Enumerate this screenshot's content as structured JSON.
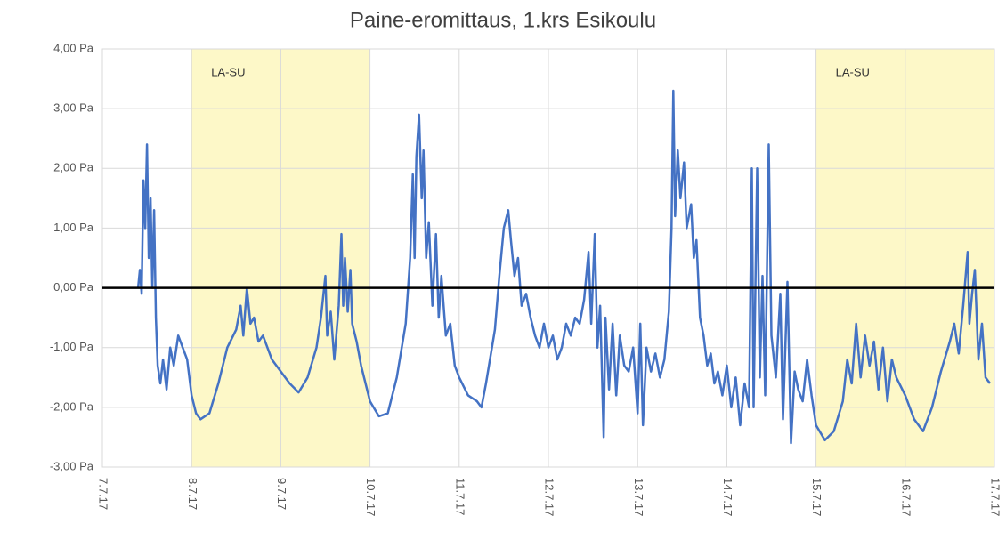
{
  "chart_data": {
    "type": "line",
    "title": "Paine-eromittaus, 1.krs Esikoulu",
    "color": "#4472c4",
    "grid": true,
    "hline": 0,
    "shaded_regions": [
      {
        "start": 1,
        "end": 3,
        "label": "LA-SU"
      },
      {
        "start": 8,
        "end": 10,
        "label": "LA-SU"
      }
    ],
    "xlim": [
      0,
      10
    ],
    "xticks": [
      {
        "value": 0,
        "label": "7.7.17"
      },
      {
        "value": 1,
        "label": "8.7.17"
      },
      {
        "value": 2,
        "label": "9.7.17"
      },
      {
        "value": 3,
        "label": "10.7.17"
      },
      {
        "value": 4,
        "label": "11.7.17"
      },
      {
        "value": 5,
        "label": "12.7.17"
      },
      {
        "value": 6,
        "label": "13.7.17"
      },
      {
        "value": 7,
        "label": "14.7.17"
      },
      {
        "value": 8,
        "label": "15.7.17"
      },
      {
        "value": 9,
        "label": "16.7.17"
      },
      {
        "value": 10,
        "label": "17.7.17"
      }
    ],
    "ylim": [
      -3,
      4
    ],
    "yticks": [
      {
        "value": -3,
        "label": "-3,00 Pa"
      },
      {
        "value": -2,
        "label": "-2,00 Pa"
      },
      {
        "value": -1,
        "label": "-1,00 Pa"
      },
      {
        "value": 0,
        "label": "0,00 Pa"
      },
      {
        "value": 1,
        "label": "1,00 Pa"
      },
      {
        "value": 2,
        "label": "2,00 Pa"
      },
      {
        "value": 3,
        "label": "3,00 Pa"
      },
      {
        "value": 4,
        "label": "4,00 Pa"
      }
    ],
    "x": [
      0.4,
      0.42,
      0.44,
      0.46,
      0.48,
      0.5,
      0.52,
      0.54,
      0.56,
      0.58,
      0.6,
      0.62,
      0.65,
      0.68,
      0.72,
      0.76,
      0.8,
      0.85,
      0.9,
      0.95,
      1.0,
      1.05,
      1.1,
      1.2,
      1.3,
      1.4,
      1.5,
      1.55,
      1.58,
      1.62,
      1.66,
      1.7,
      1.75,
      1.8,
      1.9,
      2.0,
      2.1,
      2.2,
      2.3,
      2.4,
      2.45,
      2.5,
      2.52,
      2.56,
      2.6,
      2.65,
      2.68,
      2.7,
      2.72,
      2.75,
      2.78,
      2.8,
      2.85,
      2.9,
      3.0,
      3.1,
      3.2,
      3.3,
      3.4,
      3.45,
      3.48,
      3.5,
      3.52,
      3.55,
      3.58,
      3.6,
      3.63,
      3.66,
      3.7,
      3.74,
      3.77,
      3.8,
      3.85,
      3.9,
      3.95,
      4.0,
      4.1,
      4.2,
      4.25,
      4.3,
      4.4,
      4.45,
      4.5,
      4.55,
      4.58,
      4.62,
      4.66,
      4.7,
      4.75,
      4.8,
      4.85,
      4.9,
      4.95,
      5.0,
      5.05,
      5.1,
      5.15,
      5.2,
      5.25,
      5.3,
      5.35,
      5.4,
      5.45,
      5.48,
      5.52,
      5.55,
      5.58,
      5.62,
      5.64,
      5.68,
      5.72,
      5.76,
      5.8,
      5.85,
      5.9,
      5.95,
      6.0,
      6.03,
      6.06,
      6.1,
      6.15,
      6.2,
      6.25,
      6.3,
      6.35,
      6.38,
      6.4,
      6.42,
      6.45,
      6.48,
      6.52,
      6.55,
      6.6,
      6.63,
      6.66,
      6.7,
      6.74,
      6.78,
      6.82,
      6.86,
      6.9,
      6.95,
      7.0,
      7.05,
      7.1,
      7.15,
      7.2,
      7.25,
      7.28,
      7.3,
      7.34,
      7.37,
      7.4,
      7.43,
      7.47,
      7.5,
      7.55,
      7.6,
      7.63,
      7.68,
      7.72,
      7.76,
      7.8,
      7.85,
      7.9,
      7.95,
      8.0,
      8.1,
      8.2,
      8.3,
      8.35,
      8.4,
      8.45,
      8.5,
      8.55,
      8.6,
      8.65,
      8.7,
      8.75,
      8.8,
      8.85,
      8.9,
      9.0,
      9.1,
      9.2,
      9.3,
      9.4,
      9.5,
      9.55,
      9.6,
      9.65,
      9.7,
      9.72,
      9.75,
      9.78,
      9.82,
      9.86,
      9.9,
      9.95
    ],
    "values": [
      0,
      0.3,
      -0.1,
      1.8,
      1.0,
      2.4,
      0.5,
      1.5,
      0.0,
      1.3,
      -0.5,
      -1.3,
      -1.6,
      -1.2,
      -1.7,
      -1.0,
      -1.3,
      -0.8,
      -1.0,
      -1.2,
      -1.8,
      -2.1,
      -2.2,
      -2.1,
      -1.6,
      -1.0,
      -0.7,
      -0.3,
      -0.8,
      0.0,
      -0.6,
      -0.5,
      -0.9,
      -0.8,
      -1.2,
      -1.4,
      -1.6,
      -1.75,
      -1.5,
      -1.0,
      -0.5,
      0.2,
      -0.8,
      -0.4,
      -1.2,
      -0.3,
      0.9,
      -0.3,
      0.5,
      -0.4,
      0.3,
      -0.6,
      -0.9,
      -1.3,
      -1.9,
      -2.15,
      -2.1,
      -1.5,
      -0.6,
      0.5,
      1.9,
      0.5,
      2.2,
      2.9,
      1.5,
      2.3,
      0.5,
      1.1,
      -0.3,
      0.9,
      -0.5,
      0.2,
      -0.8,
      -0.6,
      -1.3,
      -1.5,
      -1.8,
      -1.9,
      -2.0,
      -1.6,
      -0.7,
      0.2,
      1.0,
      1.3,
      0.8,
      0.2,
      0.5,
      -0.3,
      -0.1,
      -0.5,
      -0.8,
      -1.0,
      -0.6,
      -1.0,
      -0.8,
      -1.2,
      -1.0,
      -0.6,
      -0.8,
      -0.5,
      -0.6,
      -0.2,
      0.6,
      -0.6,
      0.9,
      -1.0,
      -0.3,
      -2.5,
      -0.5,
      -1.7,
      -0.6,
      -1.8,
      -0.8,
      -1.3,
      -1.4,
      -1.0,
      -2.1,
      -0.6,
      -2.3,
      -1.0,
      -1.4,
      -1.1,
      -1.5,
      -1.2,
      -0.4,
      1.0,
      3.3,
      1.2,
      2.3,
      1.5,
      2.1,
      1.0,
      1.4,
      0.5,
      0.8,
      -0.5,
      -0.8,
      -1.3,
      -1.1,
      -1.6,
      -1.4,
      -1.8,
      -1.3,
      -2.0,
      -1.5,
      -2.3,
      -1.6,
      -2.0,
      2.0,
      -2.0,
      2.0,
      -1.5,
      0.2,
      -1.8,
      2.4,
      -0.8,
      -1.5,
      -0.1,
      -2.2,
      0.1,
      -2.6,
      -1.4,
      -1.7,
      -1.9,
      -1.2,
      -1.8,
      -2.3,
      -2.55,
      -2.4,
      -1.9,
      -1.2,
      -1.6,
      -0.6,
      -1.5,
      -0.8,
      -1.3,
      -0.9,
      -1.7,
      -1.0,
      -1.9,
      -1.2,
      -1.5,
      -1.8,
      -2.2,
      -2.4,
      -2.0,
      -1.4,
      -0.9,
      -0.6,
      -1.1,
      -0.3,
      0.6,
      -0.6,
      -0.1,
      0.3,
      -1.2,
      -0.6,
      -1.5,
      -1.6
    ]
  }
}
